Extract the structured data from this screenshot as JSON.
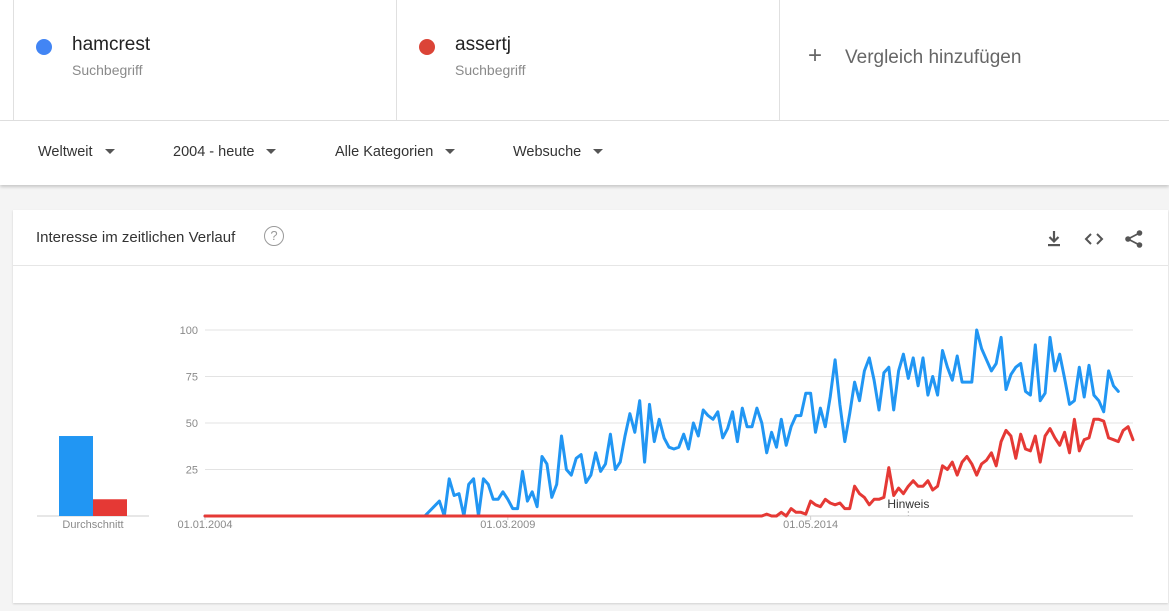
{
  "terms": [
    {
      "name": "hamcrest",
      "subtitle": "Suchbegriff",
      "color": "#4285f4"
    },
    {
      "name": "assertj",
      "subtitle": "Suchbegriff",
      "color": "#db4437"
    }
  ],
  "add_compare": {
    "label": "Vergleich hinzufügen",
    "icon": "plus-icon"
  },
  "filters": [
    {
      "label": "Weltweit"
    },
    {
      "label": "2004 - heute"
    },
    {
      "label": "Alle Kategorien"
    },
    {
      "label": "Websuche"
    }
  ],
  "card": {
    "title": "Interesse im zeitlichen Verlauf",
    "help_icon": "help-icon",
    "tools": [
      "download-icon",
      "embed-code-icon",
      "share-icon"
    ]
  },
  "chart_data": {
    "type": "line",
    "x_tick_labels": [
      "01.01.2004",
      "01.03.2009",
      "01.05.2014"
    ],
    "x_tick_dates": [
      "2004-01",
      "2009-03",
      "2014-05"
    ],
    "ylim": [
      0,
      100
    ],
    "yticks": [
      25,
      50,
      75,
      100
    ],
    "grid": true,
    "annotation": {
      "label": "Hinweis",
      "date": "2016-01"
    },
    "average_label": "Durchschnitt",
    "series": [
      {
        "name": "hamcrest",
        "color": "#2196f3",
        "average": 43,
        "points": [
          [
            "2004-01",
            0
          ],
          [
            "2007-10",
            0
          ],
          [
            "2008-01",
            8
          ],
          [
            "2008-02",
            0
          ],
          [
            "2008-03",
            20
          ],
          [
            "2008-04",
            11
          ],
          [
            "2008-05",
            12
          ],
          [
            "2008-06",
            0
          ],
          [
            "2008-07",
            17
          ],
          [
            "2008-08",
            20
          ],
          [
            "2008-09",
            0
          ],
          [
            "2008-10",
            20
          ],
          [
            "2008-11",
            17
          ],
          [
            "2008-12",
            9
          ],
          [
            "2009-01",
            9
          ],
          [
            "2009-02",
            13
          ],
          [
            "2009-03",
            9
          ],
          [
            "2009-04",
            4
          ],
          [
            "2009-05",
            4
          ],
          [
            "2009-06",
            24
          ],
          [
            "2009-07",
            8
          ],
          [
            "2009-08",
            13
          ],
          [
            "2009-09",
            5
          ],
          [
            "2009-10",
            32
          ],
          [
            "2009-11",
            28
          ],
          [
            "2009-12",
            10
          ],
          [
            "2010-01",
            17
          ],
          [
            "2010-02",
            43
          ],
          [
            "2010-03",
            25
          ],
          [
            "2010-04",
            22
          ],
          [
            "2010-05",
            31
          ],
          [
            "2010-06",
            33
          ],
          [
            "2010-07",
            18
          ],
          [
            "2010-08",
            22
          ],
          [
            "2010-09",
            34
          ],
          [
            "2010-10",
            24
          ],
          [
            "2010-11",
            28
          ],
          [
            "2010-12",
            44
          ],
          [
            "2011-01",
            25
          ],
          [
            "2011-02",
            29
          ],
          [
            "2011-03",
            43
          ],
          [
            "2011-04",
            55
          ],
          [
            "2011-05",
            45
          ],
          [
            "2011-06",
            62
          ],
          [
            "2011-07",
            29
          ],
          [
            "2011-08",
            60
          ],
          [
            "2011-09",
            40
          ],
          [
            "2011-10",
            52
          ],
          [
            "2011-11",
            42
          ],
          [
            "2011-12",
            37
          ],
          [
            "2012-01",
            36
          ],
          [
            "2012-02",
            37
          ],
          [
            "2012-03",
            44
          ],
          [
            "2012-04",
            36
          ],
          [
            "2012-05",
            50
          ],
          [
            "2012-06",
            43
          ],
          [
            "2012-07",
            57
          ],
          [
            "2012-08",
            54
          ],
          [
            "2012-09",
            52
          ],
          [
            "2012-10",
            56
          ],
          [
            "2012-11",
            42
          ],
          [
            "2012-12",
            47
          ],
          [
            "2013-01",
            56
          ],
          [
            "2013-02",
            40
          ],
          [
            "2013-03",
            58
          ],
          [
            "2013-04",
            48
          ],
          [
            "2013-05",
            48
          ],
          [
            "2013-06",
            58
          ],
          [
            "2013-07",
            50
          ],
          [
            "2013-08",
            34
          ],
          [
            "2013-09",
            45
          ],
          [
            "2013-10",
            37
          ],
          [
            "2013-11",
            52
          ],
          [
            "2013-12",
            38
          ],
          [
            "2014-01",
            48
          ],
          [
            "2014-02",
            54
          ],
          [
            "2014-03",
            54
          ],
          [
            "2014-04",
            66
          ],
          [
            "2014-05",
            66
          ],
          [
            "2014-06",
            45
          ],
          [
            "2014-07",
            58
          ],
          [
            "2014-08",
            48
          ],
          [
            "2014-09",
            64
          ],
          [
            "2014-10",
            84
          ],
          [
            "2014-11",
            60
          ],
          [
            "2014-12",
            40
          ],
          [
            "2015-01",
            55
          ],
          [
            "2015-02",
            72
          ],
          [
            "2015-03",
            62
          ],
          [
            "2015-04",
            78
          ],
          [
            "2015-05",
            85
          ],
          [
            "2015-06",
            73
          ],
          [
            "2015-07",
            57
          ],
          [
            "2015-08",
            77
          ],
          [
            "2015-09",
            80
          ],
          [
            "2015-10",
            57
          ],
          [
            "2015-11",
            78
          ],
          [
            "2015-12",
            87
          ],
          [
            "2016-01",
            74
          ],
          [
            "2016-02",
            85
          ],
          [
            "2016-03",
            70
          ],
          [
            "2016-04",
            85
          ],
          [
            "2016-05",
            65
          ],
          [
            "2016-06",
            75
          ],
          [
            "2016-07",
            65
          ],
          [
            "2016-08",
            89
          ],
          [
            "2016-09",
            80
          ],
          [
            "2016-10",
            73
          ],
          [
            "2016-11",
            86
          ],
          [
            "2016-12",
            72
          ],
          [
            "2017-01",
            72
          ],
          [
            "2017-02",
            72
          ],
          [
            "2017-03",
            100
          ],
          [
            "2017-04",
            90
          ],
          [
            "2017-05",
            84
          ],
          [
            "2017-06",
            78
          ],
          [
            "2017-07",
            82
          ],
          [
            "2017-08",
            96
          ],
          [
            "2017-09",
            68
          ],
          [
            "2017-10",
            76
          ],
          [
            "2017-11",
            80
          ],
          [
            "2017-12",
            82
          ],
          [
            "2018-01",
            67
          ],
          [
            "2018-02",
            65
          ],
          [
            "2018-03",
            92
          ],
          [
            "2018-04",
            62
          ],
          [
            "2018-05",
            66
          ],
          [
            "2018-06",
            96
          ],
          [
            "2018-07",
            78
          ],
          [
            "2018-08",
            87
          ],
          [
            "2018-09",
            74
          ],
          [
            "2018-10",
            60
          ],
          [
            "2018-11",
            62
          ],
          [
            "2018-12",
            80
          ],
          [
            "2019-01",
            64
          ],
          [
            "2019-02",
            81
          ],
          [
            "2019-03",
            65
          ],
          [
            "2019-04",
            62
          ],
          [
            "2019-05",
            56
          ],
          [
            "2019-06",
            78
          ],
          [
            "2019-07",
            70
          ],
          [
            "2019-08",
            67
          ]
        ]
      },
      {
        "name": "assertj",
        "color": "#e53935",
        "average": 9,
        "points": [
          [
            "2004-01",
            0
          ],
          [
            "2013-07",
            0
          ],
          [
            "2013-08",
            1
          ],
          [
            "2013-09",
            0
          ],
          [
            "2013-10",
            0
          ],
          [
            "2013-11",
            2
          ],
          [
            "2013-12",
            0
          ],
          [
            "2014-01",
            4
          ],
          [
            "2014-02",
            2
          ],
          [
            "2014-03",
            2
          ],
          [
            "2014-04",
            1
          ],
          [
            "2014-05",
            8
          ],
          [
            "2014-06",
            6
          ],
          [
            "2014-07",
            5
          ],
          [
            "2014-08",
            9
          ],
          [
            "2014-09",
            7
          ],
          [
            "2014-10",
            6
          ],
          [
            "2014-11",
            7
          ],
          [
            "2014-12",
            4
          ],
          [
            "2015-01",
            4
          ],
          [
            "2015-02",
            16
          ],
          [
            "2015-03",
            12
          ],
          [
            "2015-04",
            10
          ],
          [
            "2015-05",
            6
          ],
          [
            "2015-06",
            9
          ],
          [
            "2015-07",
            9
          ],
          [
            "2015-08",
            10
          ],
          [
            "2015-09",
            26
          ],
          [
            "2015-10",
            11
          ],
          [
            "2015-11",
            15
          ],
          [
            "2015-12",
            12
          ],
          [
            "2016-01",
            16
          ],
          [
            "2016-02",
            19
          ],
          [
            "2016-03",
            16
          ],
          [
            "2016-04",
            16
          ],
          [
            "2016-05",
            19
          ],
          [
            "2016-06",
            14
          ],
          [
            "2016-07",
            16
          ],
          [
            "2016-08",
            27
          ],
          [
            "2016-09",
            25
          ],
          [
            "2016-10",
            29
          ],
          [
            "2016-11",
            22
          ],
          [
            "2016-12",
            29
          ],
          [
            "2017-01",
            32
          ],
          [
            "2017-02",
            28
          ],
          [
            "2017-03",
            22
          ],
          [
            "2017-04",
            28
          ],
          [
            "2017-05",
            30
          ],
          [
            "2017-06",
            34
          ],
          [
            "2017-07",
            27
          ],
          [
            "2017-08",
            40
          ],
          [
            "2017-09",
            46
          ],
          [
            "2017-10",
            43
          ],
          [
            "2017-11",
            31
          ],
          [
            "2017-12",
            44
          ],
          [
            "2018-01",
            36
          ],
          [
            "2018-02",
            35
          ],
          [
            "2018-03",
            43
          ],
          [
            "2018-04",
            29
          ],
          [
            "2018-05",
            43
          ],
          [
            "2018-06",
            47
          ],
          [
            "2018-07",
            42
          ],
          [
            "2018-08",
            38
          ],
          [
            "2018-09",
            45
          ],
          [
            "2018-10",
            34
          ],
          [
            "2018-11",
            52
          ],
          [
            "2018-12",
            35
          ],
          [
            "2019-01",
            41
          ],
          [
            "2019-02",
            42
          ],
          [
            "2019-03",
            52
          ],
          [
            "2019-04",
            52
          ],
          [
            "2019-05",
            51
          ],
          [
            "2019-06",
            42
          ],
          [
            "2019-07",
            41
          ],
          [
            "2019-08",
            40
          ],
          [
            "2019-09",
            46
          ],
          [
            "2019-10",
            48
          ],
          [
            "2019-11",
            41
          ]
        ]
      }
    ]
  }
}
